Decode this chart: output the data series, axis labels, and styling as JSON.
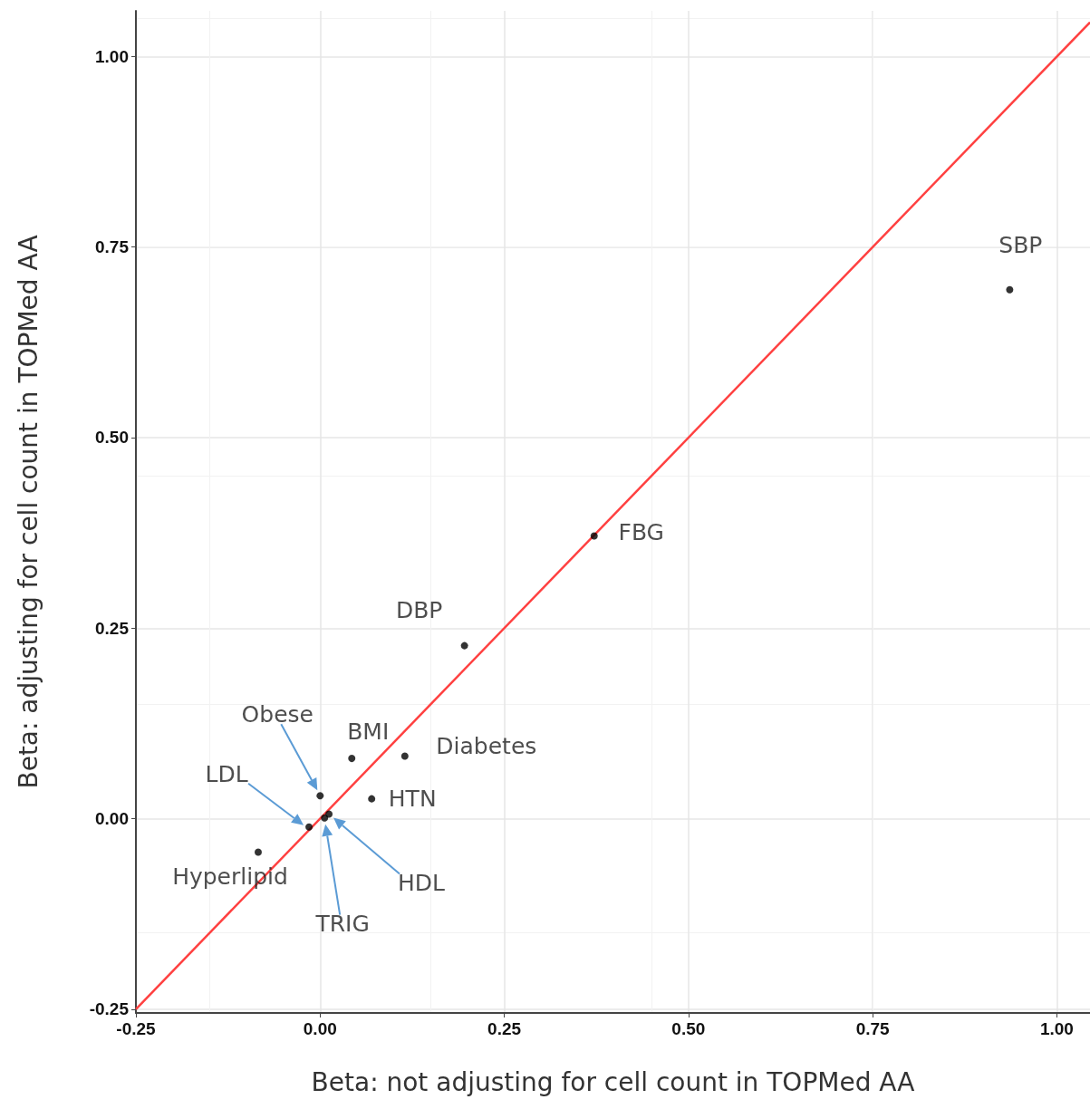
{
  "chart_data": {
    "type": "scatter",
    "xlabel": "Beta: not adjusting for cell count in TOPMed AA",
    "ylabel": "Beta: adjusting for cell count in TOPMed AA",
    "xlim": [
      -0.25,
      1.045
    ],
    "ylim": [
      -0.255,
      1.06
    ],
    "xticks": [
      {
        "value": -0.25,
        "label": "-0.25"
      },
      {
        "value": 0,
        "label": "0.00"
      },
      {
        "value": 0.25,
        "label": "0.25"
      },
      {
        "value": 0.5,
        "label": "0.50"
      },
      {
        "value": 0.75,
        "label": "0.75"
      },
      {
        "value": 1,
        "label": "1.00"
      }
    ],
    "yticks": [
      {
        "value": -0.25,
        "label": "-0.25"
      },
      {
        "value": 0,
        "label": "0.00"
      },
      {
        "value": 0.25,
        "label": "0.25"
      },
      {
        "value": 0.5,
        "label": "0.50"
      },
      {
        "value": 0.75,
        "label": "0.75"
      },
      {
        "value": 1,
        "label": "1.00"
      }
    ],
    "grid": true,
    "series": [
      {
        "color": "#000000",
        "x": [
          0.936,
          0.372,
          0.196,
          0.115,
          0.043,
          0.07,
          0.0,
          -0.015,
          0.012,
          0.006,
          -0.084
        ],
        "values": [
          0.694,
          0.371,
          0.227,
          0.082,
          0.079,
          0.026,
          0.03,
          -0.011,
          0.006,
          0.001,
          -0.044
        ]
      },
      {
        "type": "line",
        "color": "#ff4040",
        "x": [
          -0.25,
          1.045
        ],
        "values": [
          -0.25,
          1.045
        ]
      }
    ],
    "annotations": [
      {
        "text": "SBP",
        "x": 0.936,
        "y": 0.694
      },
      {
        "text": "FBG",
        "x": 0.372,
        "y": 0.371
      },
      {
        "text": "DBP",
        "x": 0.196,
        "y": 0.227
      },
      {
        "text": "Diabetes",
        "x": 0.115,
        "y": 0.082
      },
      {
        "text": "BMI",
        "x": 0.043,
        "y": 0.079
      },
      {
        "text": "HTN",
        "x": 0.07,
        "y": 0.026
      },
      "Obese",
      "LDL",
      "HDL",
      "TRIG",
      {
        "text": "Hyperlipid",
        "x": -0.084,
        "y": -0.044
      }
    ]
  }
}
